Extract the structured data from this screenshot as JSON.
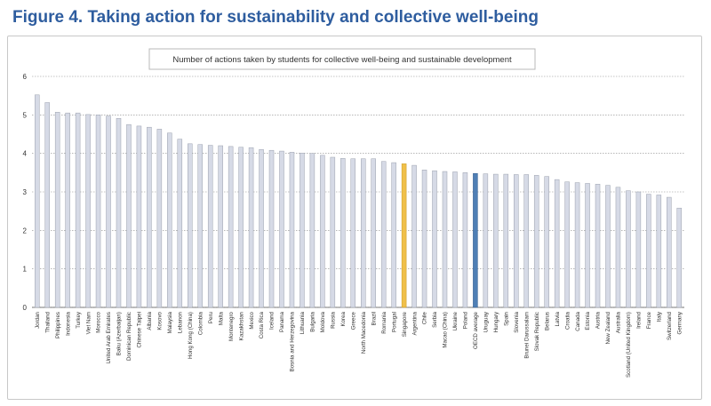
{
  "figure": {
    "title": "Figure 4. Taking action for sustainability and collective well-being"
  },
  "colors": {
    "default": "#d6dae6",
    "highlight": "#f0c04a",
    "average": "#4f7fb5",
    "bar_stroke": "#9aa0ad",
    "grid": "#8c8c8c"
  },
  "chart_data": {
    "type": "bar",
    "title": "Number of actions taken by students for collective well-being and sustainable development",
    "xlabel": "",
    "ylabel": "",
    "ylim": [
      0,
      6
    ],
    "yticks": [
      0,
      1,
      2,
      3,
      4,
      5,
      6
    ],
    "grid": true,
    "categories": [
      "Jordan",
      "Thailand",
      "Philippines",
      "Indonesia",
      "Turkey",
      "Viet Nam",
      "Morocco",
      "United Arab Emirates",
      "Baku (Azerbaijan)",
      "Dominican Republic",
      "Chinese Taipei",
      "Albania",
      "Kosovo",
      "Malaysia",
      "Lebanon",
      "Hong Kong (China)",
      "Colombia",
      "Peru",
      "Malta",
      "Montenegro",
      "Kazakhstan",
      "Mexico",
      "Costa Rica",
      "Iceland",
      "Panama",
      "Bosnia and Herzegovina",
      "Lithuania",
      "Bulgaria",
      "Moldova",
      "Russia",
      "Korea",
      "Greece",
      "North Macedonia",
      "Brazil",
      "Romania",
      "Portugal",
      "Singapore",
      "Argentina",
      "Chile",
      "Serbia",
      "Macao (China)",
      "Ukraine",
      "Poland",
      "OECD average",
      "Uruguay",
      "Hungary",
      "Spain",
      "Slovenia",
      "Brunei Darussalam",
      "Slovak Republic",
      "Belarus",
      "Latvia",
      "Croatia",
      "Canada",
      "Estonia",
      "Austria",
      "New Zealand",
      "Australia",
      "Scotland (United Kingdom)",
      "Ireland",
      "France",
      "Italy",
      "Switzerland",
      "Germany"
    ],
    "values": [
      5.52,
      5.32,
      5.07,
      5.05,
      5.05,
      5.01,
      5.0,
      4.97,
      4.91,
      4.75,
      4.71,
      4.68,
      4.63,
      4.53,
      4.37,
      4.25,
      4.23,
      4.21,
      4.2,
      4.18,
      4.16,
      4.15,
      4.1,
      4.08,
      4.06,
      4.03,
      4.01,
      4.0,
      3.95,
      3.9,
      3.87,
      3.86,
      3.86,
      3.86,
      3.79,
      3.76,
      3.73,
      3.69,
      3.57,
      3.55,
      3.53,
      3.52,
      3.5,
      3.48,
      3.47,
      3.46,
      3.46,
      3.45,
      3.45,
      3.43,
      3.4,
      3.32,
      3.26,
      3.24,
      3.22,
      3.2,
      3.17,
      3.12,
      3.03,
      3.0,
      2.94,
      2.92,
      2.86,
      2.58
    ],
    "highlight": {
      "Singapore": "highlight",
      "OECD average": "average"
    }
  }
}
